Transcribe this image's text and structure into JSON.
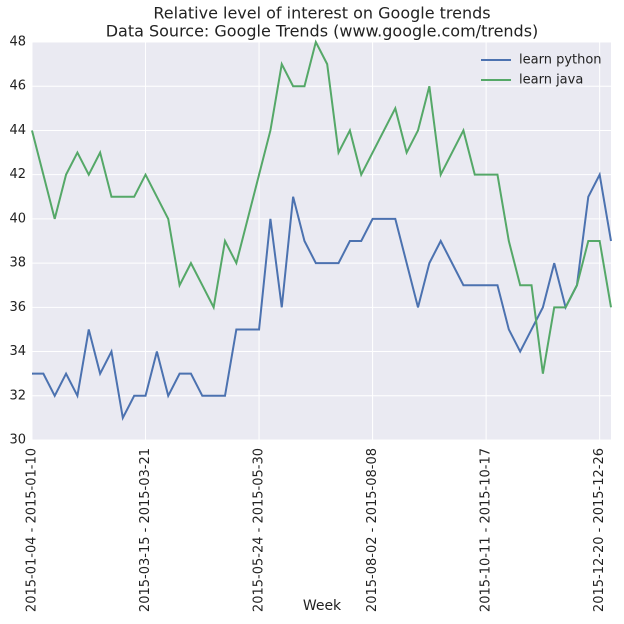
{
  "chart_data": {
    "type": "line",
    "title": "Relative level of interest on Google trends",
    "subtitle": "Data Source: Google Trends (www.google.com/trends)",
    "xlabel": "Week",
    "categories": [
      "2015-01-04 - 2015-01-10",
      null,
      null,
      null,
      null,
      null,
      null,
      null,
      null,
      null,
      "2015-03-15 - 2015-03-21",
      null,
      null,
      null,
      null,
      null,
      null,
      null,
      null,
      null,
      "2015-05-24 - 2015-05-30",
      null,
      null,
      null,
      null,
      null,
      null,
      null,
      null,
      null,
      "2015-08-02 - 2015-08-08",
      null,
      null,
      null,
      null,
      null,
      null,
      null,
      null,
      null,
      "2015-10-11 - 2015-10-17",
      null,
      null,
      null,
      null,
      null,
      null,
      null,
      null,
      null,
      "2015-12-20 - 2015-12-26",
      null
    ],
    "series": [
      {
        "name": "learn python",
        "color": "#4c72b0",
        "values": [
          33,
          33,
          32,
          33,
          32,
          35,
          33,
          34,
          31,
          32,
          32,
          34,
          32,
          33,
          33,
          32,
          32,
          32,
          35,
          35,
          35,
          40,
          36,
          41,
          39,
          38,
          38,
          38,
          39,
          39,
          40,
          40,
          40,
          38,
          36,
          38,
          39,
          38,
          37,
          37,
          37,
          37,
          35,
          34,
          35,
          36,
          38,
          36,
          37,
          41,
          42,
          39
        ]
      },
      {
        "name": "learn java",
        "color": "#55a868",
        "values": [
          44,
          42,
          40,
          42,
          43,
          42,
          43,
          41,
          41,
          41,
          42,
          41,
          40,
          37,
          38,
          37,
          36,
          39,
          38,
          40,
          42,
          44,
          47,
          46,
          46,
          48,
          47,
          43,
          44,
          42,
          43,
          44,
          45,
          43,
          44,
          46,
          42,
          43,
          44,
          42,
          42,
          42,
          39,
          37,
          37,
          33,
          36,
          36,
          37,
          39,
          39,
          36
        ]
      }
    ],
    "ylim": [
      30,
      48
    ],
    "yticks": [
      30,
      32,
      34,
      36,
      38,
      40,
      42,
      44,
      46,
      48
    ],
    "grid": true,
    "legend": "upper right"
  }
}
